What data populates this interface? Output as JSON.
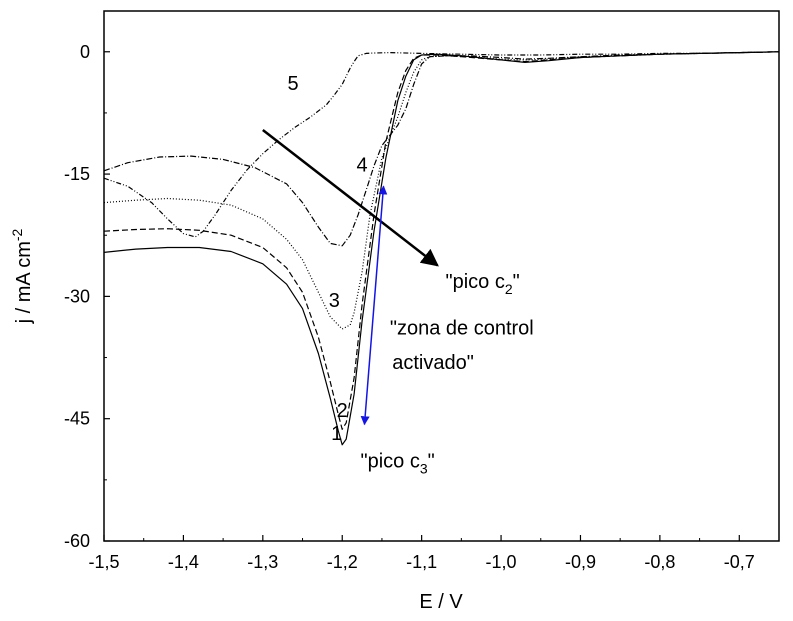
{
  "chart_data": {
    "type": "line",
    "title": "",
    "xlabel": "E / V",
    "ylabel": {
      "main": "j / mA cm",
      "sup": "-2"
    },
    "xlim": [
      -1.5,
      -0.65
    ],
    "ylim": [
      -60,
      5
    ],
    "xticks": [
      {
        "v": -1.5,
        "label": "-1,5"
      },
      {
        "v": -1.4,
        "label": "-1,4"
      },
      {
        "v": -1.3,
        "label": "-1,3"
      },
      {
        "v": -1.2,
        "label": "-1,2"
      },
      {
        "v": -1.1,
        "label": "-1,1"
      },
      {
        "v": -1.0,
        "label": "-1,0"
      },
      {
        "v": -0.9,
        "label": "-0,9"
      },
      {
        "v": -0.8,
        "label": "-0,8"
      },
      {
        "v": -0.7,
        "label": "-0,7"
      }
    ],
    "yticks": [
      {
        "v": 0,
        "label": "0"
      },
      {
        "v": -15,
        "label": "-15"
      },
      {
        "v": -30,
        "label": "-30"
      },
      {
        "v": -45,
        "label": "-45"
      },
      {
        "v": -60,
        "label": "-60"
      }
    ],
    "grid": false,
    "series": [
      {
        "name": "1",
        "dash": "",
        "x": [
          -1.5,
          -1.46,
          -1.42,
          -1.38,
          -1.34,
          -1.3,
          -1.27,
          -1.25,
          -1.23,
          -1.215,
          -1.205,
          -1.2,
          -1.195,
          -1.185,
          -1.175,
          -1.16,
          -1.145,
          -1.13,
          -1.12,
          -1.11,
          -1.1,
          -1.08,
          -1.05,
          -1.0,
          -0.97,
          -0.94,
          -0.9,
          -0.85,
          -0.8,
          -0.75,
          -0.7,
          -0.65
        ],
        "y": [
          -24.6,
          -24.2,
          -24,
          -24,
          -24.5,
          -26,
          -28.5,
          -31.5,
          -37,
          -42.5,
          -46.5,
          -48.2,
          -47.5,
          -42,
          -33,
          -22,
          -13,
          -6,
          -3,
          -1,
          -0.4,
          -0.3,
          -0.5,
          -1,
          -1.3,
          -1.1,
          -0.7,
          -0.5,
          -0.3,
          -0.2,
          -0.1,
          0
        ]
      },
      {
        "name": "2",
        "dash": "6,3",
        "x": [
          -1.5,
          -1.46,
          -1.42,
          -1.38,
          -1.34,
          -1.3,
          -1.27,
          -1.25,
          -1.23,
          -1.215,
          -1.205,
          -1.2,
          -1.195,
          -1.185,
          -1.175,
          -1.16,
          -1.145,
          -1.13,
          -1.12,
          -1.11,
          -1.1,
          -1.08,
          -1.05,
          -1.0,
          -0.97,
          -0.94,
          -0.9,
          -0.85,
          -0.8,
          -0.75,
          -0.7,
          -0.65
        ],
        "y": [
          -22,
          -21.8,
          -21.7,
          -21.9,
          -22.5,
          -24,
          -26.5,
          -29.5,
          -35,
          -40.5,
          -44.5,
          -46.3,
          -45.5,
          -40,
          -31,
          -20,
          -11,
          -5,
          -2.3,
          -0.8,
          -0.4,
          -0.4,
          -0.6,
          -1,
          -1.2,
          -1,
          -0.7,
          -0.5,
          -0.3,
          -0.2,
          -0.1,
          0
        ]
      },
      {
        "name": "3",
        "dash": "1,2",
        "x": [
          -1.5,
          -1.46,
          -1.42,
          -1.38,
          -1.34,
          -1.3,
          -1.27,
          -1.25,
          -1.23,
          -1.215,
          -1.2,
          -1.19,
          -1.185,
          -1.175,
          -1.165,
          -1.15,
          -1.13,
          -1.12,
          -1.11,
          -1.1,
          -1.09,
          -1.07,
          -1.04,
          -1.0,
          -0.97,
          -0.94,
          -0.9,
          -0.85,
          -0.8,
          -0.75,
          -0.7,
          -0.65
        ],
        "y": [
          -18.5,
          -18.2,
          -18,
          -18.2,
          -18.8,
          -20.5,
          -23,
          -25.5,
          -29.5,
          -32.5,
          -34,
          -33.5,
          -32,
          -27,
          -20,
          -13,
          -8,
          -5,
          -2.5,
          -1,
          -0.6,
          -0.5,
          -0.6,
          -0.9,
          -1,
          -0.9,
          -0.6,
          -0.5,
          -0.3,
          -0.2,
          -0.1,
          0
        ]
      },
      {
        "name": "4",
        "dash": "6,2,1,2",
        "x": [
          -1.5,
          -1.47,
          -1.43,
          -1.39,
          -1.35,
          -1.31,
          -1.27,
          -1.25,
          -1.23,
          -1.215,
          -1.2,
          -1.19,
          -1.18,
          -1.17,
          -1.16,
          -1.15,
          -1.13,
          -1.12,
          -1.11,
          -1.1,
          -1.09,
          -1.07,
          -1.04,
          -1.0,
          -0.97,
          -0.94,
          -0.9,
          -0.85,
          -0.8,
          -0.75,
          -0.7,
          -0.65
        ],
        "y": [
          -14.6,
          -13.6,
          -12.9,
          -12.8,
          -13.2,
          -14.2,
          -16.2,
          -18.5,
          -21.5,
          -23.5,
          -23.8,
          -22.5,
          -20,
          -17,
          -14,
          -11.5,
          -9,
          -7,
          -4,
          -1.5,
          -0.6,
          -0.5,
          -0.5,
          -0.7,
          -0.9,
          -0.8,
          -0.6,
          -0.4,
          -0.3,
          -0.2,
          -0.1,
          0
        ]
      },
      {
        "name": "5",
        "dash": "5,2,1,2,1,2",
        "x": [
          -1.5,
          -1.47,
          -1.44,
          -1.42,
          -1.4,
          -1.385,
          -1.375,
          -1.36,
          -1.34,
          -1.32,
          -1.3,
          -1.28,
          -1.26,
          -1.24,
          -1.22,
          -1.21,
          -1.2,
          -1.195,
          -1.19,
          -1.185,
          -1.18,
          -1.17,
          -1.16,
          -1.14,
          -1.1,
          -1.05,
          -1.0,
          -0.95,
          -0.9,
          -0.85,
          -0.8,
          -0.75,
          -0.7,
          -0.65
        ],
        "y": [
          -15.5,
          -16.5,
          -18.5,
          -20.5,
          -22.3,
          -22.7,
          -22,
          -20,
          -17,
          -14.5,
          -12.5,
          -10.8,
          -9.3,
          -8,
          -6.5,
          -5.3,
          -4,
          -3,
          -2,
          -1.2,
          -0.5,
          -0.2,
          -0.15,
          -0.1,
          -0.2,
          -0.3,
          -0.4,
          -0.4,
          -0.3,
          -0.3,
          -0.2,
          -0.2,
          -0.1,
          0
        ]
      }
    ],
    "curve_labels": [
      {
        "text": "1",
        "x": -1.207,
        "y": -47.6
      },
      {
        "text": "2",
        "x": -1.2,
        "y": -44.8
      },
      {
        "text": "3",
        "x": -1.21,
        "y": -31.3
      },
      {
        "text": "4",
        "x": -1.175,
        "y": -14.7
      },
      {
        "text": "5",
        "x": -1.262,
        "y": -4.7
      }
    ],
    "annotations": {
      "pico_c2": {
        "text": "\"pico c",
        "sub": "2",
        "end": "\"",
        "x": -1.07,
        "y": -29
      },
      "pico_c3": {
        "text": "\"pico c",
        "sub": "3",
        "end": "\"",
        "x": -1.177,
        "y": -51
      },
      "zona_line1": {
        "text": "\"zona de control",
        "x": -1.14,
        "y": -34.7
      },
      "zona_line2": {
        "text": "activado\"",
        "x": -1.137,
        "y": -38.9
      }
    },
    "arrows": {
      "black": {
        "color": "#000000",
        "x1": -1.3,
        "y1": -9.6,
        "x2": -1.08,
        "y2": -26.2
      },
      "blue": {
        "color": "#1414e6",
        "x1": -1.172,
        "y1": -45.7,
        "x2": -1.148,
        "y2": -16.5
      }
    }
  }
}
